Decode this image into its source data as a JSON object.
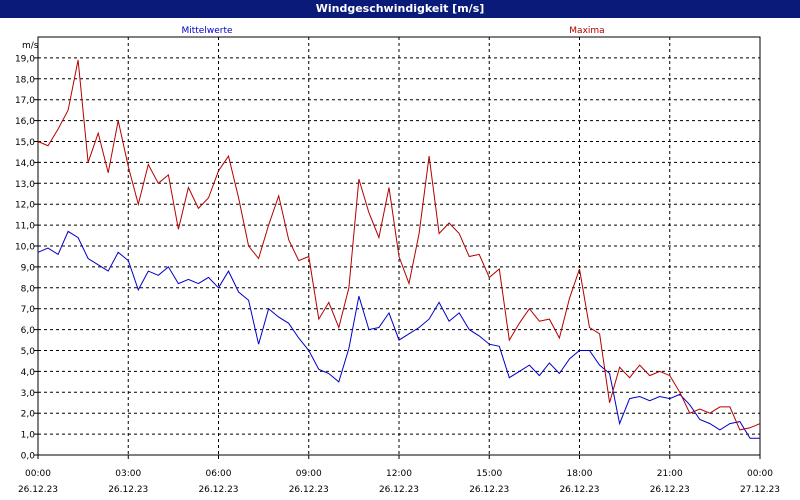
{
  "window": {
    "title": "Windgeschwindigkeit [m/s]"
  },
  "chart_data": {
    "type": "line",
    "title": "Windgeschwindigkeit [m/s]",
    "ylabel": "m/s",
    "xlabel": "",
    "ylim": [
      0,
      20
    ],
    "xlim": [
      "26.12.23 00:00",
      "27.12.23 00:00"
    ],
    "grid": true,
    "y_ticks": [
      "0,0",
      "1,0",
      "2,0",
      "3,0",
      "4,0",
      "5,0",
      "6,0",
      "7,0",
      "8,0",
      "9,0",
      "10,0",
      "11,0",
      "12,0",
      "13,0",
      "14,0",
      "15,0",
      "16,0",
      "17,0",
      "18,0",
      "19,0"
    ],
    "x_ticks": [
      {
        "time": "00:00",
        "date": "26.12.23"
      },
      {
        "time": "03:00",
        "date": "26.12.23"
      },
      {
        "time": "06:00",
        "date": "26.12.23"
      },
      {
        "time": "09:00",
        "date": "26.12.23"
      },
      {
        "time": "12:00",
        "date": "26.12.23"
      },
      {
        "time": "15:00",
        "date": "26.12.23"
      },
      {
        "time": "18:00",
        "date": "26.12.23"
      },
      {
        "time": "21:00",
        "date": "26.12.23"
      },
      {
        "time": "00:00",
        "date": "27.12.23"
      }
    ],
    "series": [
      {
        "name": "Mittelwerte",
        "color": "#0000c8",
        "x": [
          "26.12.23 00:00",
          "26.12.23 00:20",
          "26.12.23 00:40",
          "26.12.23 01:00",
          "26.12.23 01:20",
          "26.12.23 01:40",
          "26.12.23 02:00",
          "26.12.23 02:20",
          "26.12.23 02:40",
          "26.12.23 03:00",
          "26.12.23 03:20",
          "26.12.23 03:40",
          "26.12.23 04:00",
          "26.12.23 04:20",
          "26.12.23 04:40",
          "26.12.23 05:00",
          "26.12.23 05:20",
          "26.12.23 05:40",
          "26.12.23 06:00",
          "26.12.23 06:20",
          "26.12.23 06:40",
          "26.12.23 07:00",
          "26.12.23 07:20",
          "26.12.23 07:40",
          "26.12.23 08:00",
          "26.12.23 08:20",
          "26.12.23 08:40",
          "26.12.23 09:00",
          "26.12.23 09:20",
          "26.12.23 09:40",
          "26.12.23 10:00",
          "26.12.23 10:20",
          "26.12.23 10:40",
          "26.12.23 11:00",
          "26.12.23 11:20",
          "26.12.23 11:40",
          "26.12.23 12:00",
          "26.12.23 12:20",
          "26.12.23 12:40",
          "26.12.23 13:00",
          "26.12.23 13:20",
          "26.12.23 13:40",
          "26.12.23 14:00",
          "26.12.23 14:20",
          "26.12.23 14:40",
          "26.12.23 15:00",
          "26.12.23 15:20",
          "26.12.23 15:40",
          "26.12.23 16:00",
          "26.12.23 16:20",
          "26.12.23 16:40",
          "26.12.23 17:00",
          "26.12.23 17:20",
          "26.12.23 17:40",
          "26.12.23 18:00",
          "26.12.23 18:20",
          "26.12.23 18:40",
          "26.12.23 19:00",
          "26.12.23 19:20",
          "26.12.23 19:40",
          "26.12.23 20:00",
          "26.12.23 20:20",
          "26.12.23 20:40",
          "26.12.23 21:00",
          "26.12.23 21:20",
          "26.12.23 21:40",
          "26.12.23 22:00",
          "26.12.23 22:20",
          "26.12.23 22:40",
          "26.12.23 23:00",
          "26.12.23 23:20",
          "26.12.23 23:40",
          "27.12.23 00:00"
        ],
        "values": [
          9.7,
          9.9,
          9.6,
          10.7,
          10.4,
          9.4,
          9.1,
          8.8,
          9.7,
          9.3,
          7.9,
          8.8,
          8.6,
          9.0,
          8.2,
          8.4,
          8.2,
          8.5,
          8.0,
          8.8,
          7.8,
          7.4,
          5.3,
          7.0,
          6.6,
          6.3,
          5.6,
          5.0,
          4.1,
          3.9,
          3.5,
          5.1,
          7.6,
          6.0,
          6.1,
          6.8,
          5.5,
          5.8,
          6.1,
          6.5,
          7.3,
          6.4,
          6.8,
          6.0,
          5.7,
          5.3,
          5.2,
          3.7,
          4.0,
          4.3,
          3.8,
          4.4,
          3.9,
          4.6,
          5.0,
          5.0,
          4.3,
          3.9,
          1.5,
          2.7,
          2.8,
          2.6,
          2.8,
          2.7,
          2.9,
          2.4,
          1.7,
          1.5,
          1.2,
          1.5,
          1.6,
          0.8,
          0.8
        ]
      },
      {
        "name": "Maxima",
        "color": "#b40000",
        "x": [
          "26.12.23 00:00",
          "26.12.23 00:20",
          "26.12.23 00:40",
          "26.12.23 01:00",
          "26.12.23 01:20",
          "26.12.23 01:40",
          "26.12.23 02:00",
          "26.12.23 02:20",
          "26.12.23 02:40",
          "26.12.23 03:00",
          "26.12.23 03:20",
          "26.12.23 03:40",
          "26.12.23 04:00",
          "26.12.23 04:20",
          "26.12.23 04:40",
          "26.12.23 05:00",
          "26.12.23 05:20",
          "26.12.23 05:40",
          "26.12.23 06:00",
          "26.12.23 06:20",
          "26.12.23 06:40",
          "26.12.23 07:00",
          "26.12.23 07:20",
          "26.12.23 07:40",
          "26.12.23 08:00",
          "26.12.23 08:20",
          "26.12.23 08:40",
          "26.12.23 09:00",
          "26.12.23 09:20",
          "26.12.23 09:40",
          "26.12.23 10:00",
          "26.12.23 10:20",
          "26.12.23 10:40",
          "26.12.23 11:00",
          "26.12.23 11:20",
          "26.12.23 11:40",
          "26.12.23 12:00",
          "26.12.23 12:20",
          "26.12.23 12:40",
          "26.12.23 13:00",
          "26.12.23 13:20",
          "26.12.23 13:40",
          "26.12.23 14:00",
          "26.12.23 14:20",
          "26.12.23 14:40",
          "26.12.23 15:00",
          "26.12.23 15:20",
          "26.12.23 15:40",
          "26.12.23 16:00",
          "26.12.23 16:20",
          "26.12.23 16:40",
          "26.12.23 17:00",
          "26.12.23 17:20",
          "26.12.23 17:40",
          "26.12.23 18:00",
          "26.12.23 18:20",
          "26.12.23 18:40",
          "26.12.23 19:00",
          "26.12.23 19:20",
          "26.12.23 19:40",
          "26.12.23 20:00",
          "26.12.23 20:20",
          "26.12.23 20:40",
          "26.12.23 21:00",
          "26.12.23 21:20",
          "26.12.23 21:40",
          "26.12.23 22:00",
          "26.12.23 22:20",
          "26.12.23 22:40",
          "26.12.23 23:00",
          "26.12.23 23:20",
          "26.12.23 23:40",
          "27.12.23 00:00"
        ],
        "values": [
          15.0,
          14.8,
          15.6,
          16.5,
          18.9,
          14.0,
          15.4,
          13.5,
          16.0,
          13.8,
          12.0,
          13.9,
          13.0,
          13.4,
          10.8,
          12.8,
          11.8,
          12.3,
          13.6,
          14.3,
          12.3,
          10.0,
          9.4,
          11.0,
          12.4,
          10.3,
          9.3,
          9.5,
          6.5,
          7.3,
          6.1,
          8.0,
          13.2,
          11.6,
          10.4,
          12.8,
          9.5,
          8.2,
          10.6,
          14.3,
          10.6,
          11.1,
          10.6,
          9.5,
          9.6,
          8.5,
          8.9,
          5.5,
          6.3,
          7.0,
          6.4,
          6.5,
          5.6,
          7.5,
          8.9,
          6.1,
          5.8,
          2.5,
          4.2,
          3.7,
          4.3,
          3.8,
          4.0,
          3.8,
          3.0,
          2.0,
          2.2,
          2.0,
          2.3,
          2.3,
          1.2,
          1.3,
          1.5
        ]
      }
    ]
  }
}
